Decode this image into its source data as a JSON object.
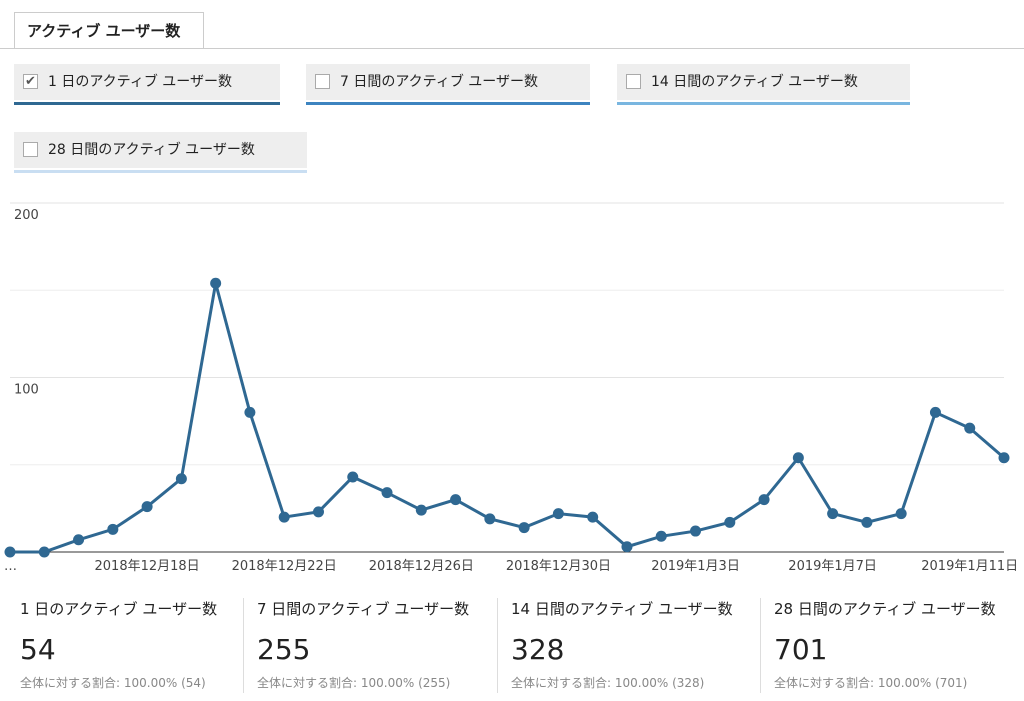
{
  "tab": {
    "label": "アクティブ ユーザー数"
  },
  "chart_data": {
    "type": "line",
    "categories": [
      "…",
      null,
      null,
      null,
      "2018年12月18日",
      null,
      null,
      null,
      "2018年12月22日",
      null,
      null,
      null,
      "2018年12月26日",
      null,
      null,
      null,
      "2018年12月30日",
      null,
      null,
      null,
      "2019年1月3日",
      null,
      null,
      null,
      "2019年1月7日",
      null,
      null,
      null,
      "2019年1月11日",
      null
    ],
    "series": [
      {
        "name": "1 日のアクティブ ユーザー数",
        "color": "#2f6892",
        "checked": true,
        "values": [
          0,
          0,
          7,
          13,
          26,
          42,
          154,
          80,
          20,
          23,
          43,
          34,
          24,
          30,
          19,
          14,
          22,
          20,
          3,
          9,
          12,
          17,
          30,
          54,
          22,
          17,
          22,
          80,
          71,
          54
        ]
      },
      {
        "name": "7 日間のアクティブ ユーザー数",
        "color": "#3d84c0",
        "checked": false
      },
      {
        "name": "14 日間のアクティブ ユーザー数",
        "color": "#79b6e0",
        "checked": false
      },
      {
        "name": "28 日間のアクティブ ユーザー数",
        "color": "#c9def2",
        "checked": false
      }
    ],
    "ylim": [
      0,
      200
    ],
    "yticks": [
      100,
      200
    ],
    "minor_yticks": [
      50,
      150
    ],
    "grid": true
  },
  "summary": [
    {
      "value": "54",
      "share": "全体に対する割合: 100.00% (54)"
    },
    {
      "value": "255",
      "share": "全体に対する割合: 100.00% (255)"
    },
    {
      "value": "328",
      "share": "全体に対する割合: 100.00% (328)"
    },
    {
      "value": "701",
      "share": "全体に対する割合: 100.00% (701)"
    }
  ]
}
